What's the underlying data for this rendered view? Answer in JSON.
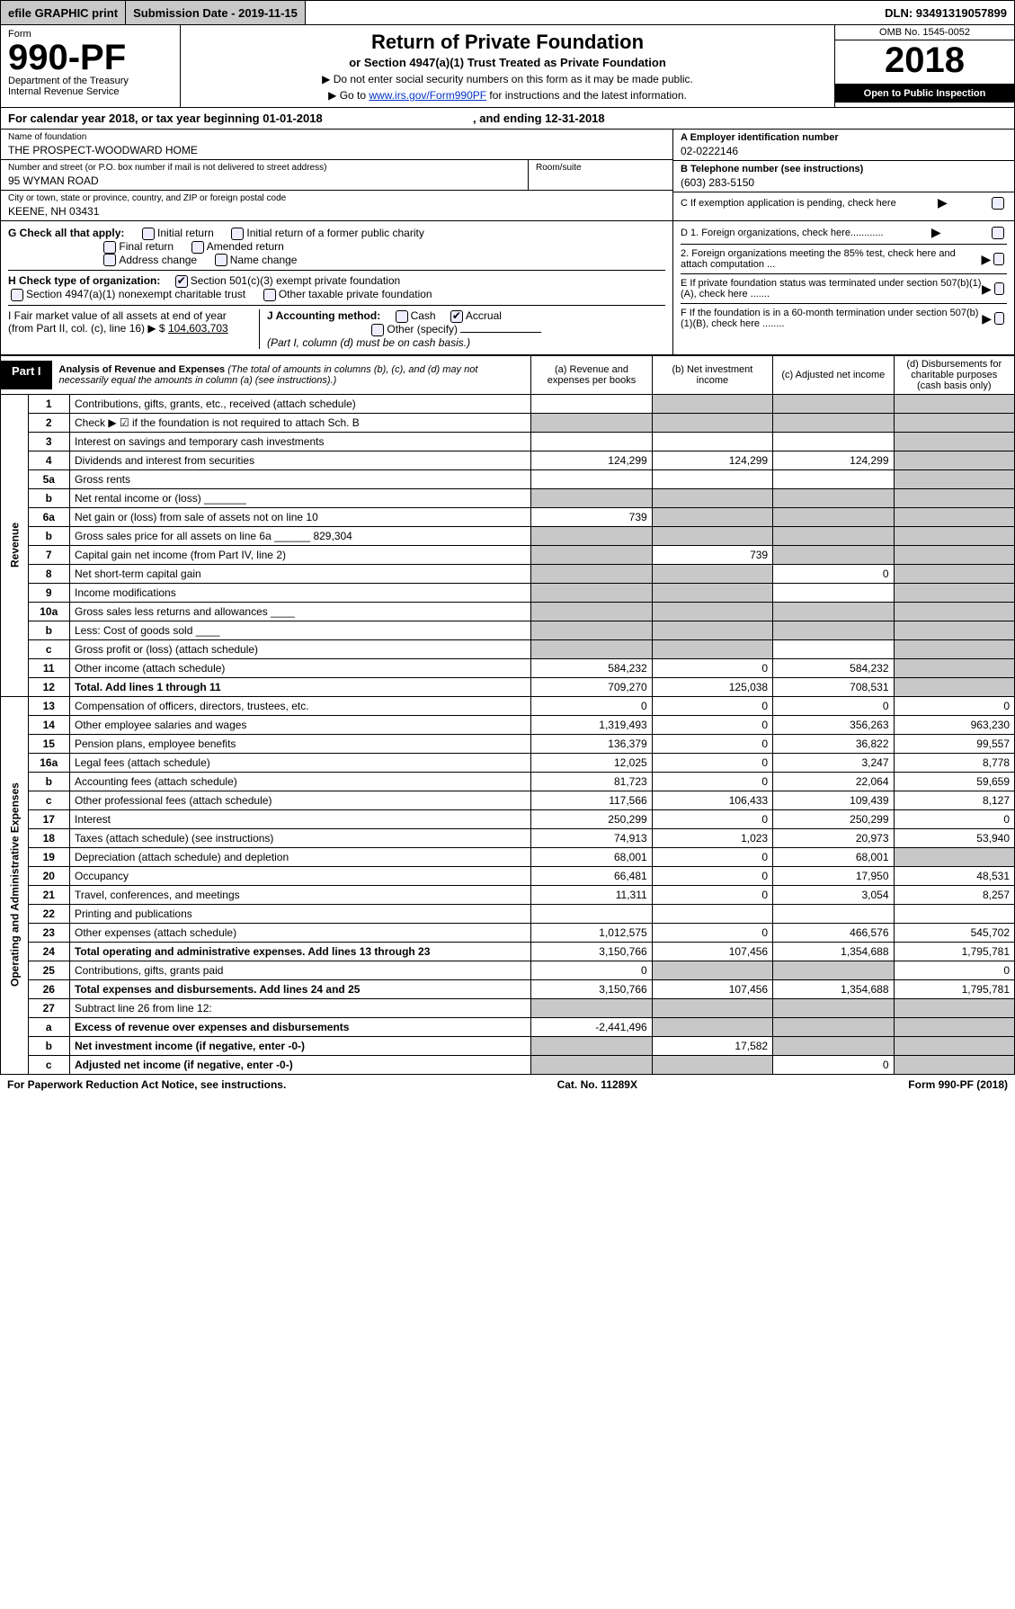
{
  "topbar": {
    "efile": "efile GRAPHIC print",
    "submission": "Submission Date - 2019-11-15",
    "dln": "DLN: 93491319057899"
  },
  "header": {
    "form_word": "Form",
    "form_no": "990-PF",
    "dept": "Department of the Treasury",
    "irs": "Internal Revenue Service",
    "title": "Return of Private Foundation",
    "subtitle": "or Section 4947(a)(1) Trust Treated as Private Foundation",
    "instr1": "▶ Do not enter social security numbers on this form as it may be made public.",
    "instr2_a": "▶ Go to ",
    "instr2_link": "www.irs.gov/Form990PF",
    "instr2_b": " for instructions and the latest information.",
    "omb": "OMB No. 1545-0052",
    "year": "2018",
    "open": "Open to Public Inspection"
  },
  "cal": {
    "text_a": "For calendar year 2018, or tax year beginning 01-01-2018",
    "text_b": ", and ending 12-31-2018"
  },
  "info": {
    "name_label": "Name of foundation",
    "name": "THE PROSPECT-WOODWARD HOME",
    "street_label": "Number and street (or P.O. box number if mail is not delivered to street address)",
    "street": "95 WYMAN ROAD",
    "suite_label": "Room/suite",
    "city_label": "City or town, state or province, country, and ZIP or foreign postal code",
    "city": "KEENE, NH  03431",
    "a_label": "A Employer identification number",
    "a_val": "02-0222146",
    "b_label": "B Telephone number (see instructions)",
    "b_val": "(603) 283-5150",
    "c_label": "C If exemption application is pending, check here",
    "d1": "D 1. Foreign organizations, check here............",
    "d2": "2. Foreign organizations meeting the 85% test, check here and attach computation ...",
    "e": "E  If private foundation status was terminated under section 507(b)(1)(A), check here .......",
    "f": "F  If the foundation is in a 60-month termination under section 507(b)(1)(B), check here ........"
  },
  "checks": {
    "g_label": "G Check all that apply:",
    "g1": "Initial return",
    "g2": "Initial return of a former public charity",
    "g3": "Final return",
    "g4": "Amended return",
    "g5": "Address change",
    "g6": "Name change",
    "h_label": "H Check type of organization:",
    "h1": "Section 501(c)(3) exempt private foundation",
    "h2": "Section 4947(a)(1) nonexempt charitable trust",
    "h3": "Other taxable private foundation",
    "i_label": "I Fair market value of all assets at end of year (from Part II, col. (c), line 16) ▶ $",
    "i_val": "104,603,703",
    "j_label": "J Accounting method:",
    "j1": "Cash",
    "j2": "Accrual",
    "j3": "Other (specify)",
    "j_note": "(Part I, column (d) must be on cash basis.)"
  },
  "part1": {
    "tab": "Part I",
    "title": "Analysis of Revenue and Expenses",
    "note": " (The total of amounts in columns (b), (c), and (d) may not necessarily equal the amounts in column (a) (see instructions).)",
    "col_a": "(a)   Revenue and expenses per books",
    "col_b": "(b)   Net investment income",
    "col_c": "(c)   Adjusted net income",
    "col_d": "(d)   Disbursements for charitable purposes (cash basis only)"
  },
  "side": {
    "revenue": "Revenue",
    "expenses": "Operating and Administrative Expenses"
  },
  "rows": [
    {
      "n": "1",
      "d": "Contributions, gifts, grants, etc., received (attach schedule)",
      "a": "",
      "b": "s",
      "c": "s",
      "ds": "s"
    },
    {
      "n": "2",
      "d": "Check ▶ ☑ if the foundation is not required to attach Sch. B",
      "a": "s",
      "b": "s",
      "c": "s",
      "ds": "s"
    },
    {
      "n": "3",
      "d": "Interest on savings and temporary cash investments",
      "a": "",
      "b": "",
      "c": "",
      "ds": "s"
    },
    {
      "n": "4",
      "d": "Dividends and interest from securities",
      "a": "124,299",
      "b": "124,299",
      "c": "124,299",
      "ds": "s"
    },
    {
      "n": "5a",
      "d": "Gross rents",
      "a": "",
      "b": "",
      "c": "",
      "ds": "s"
    },
    {
      "n": "b",
      "d": "Net rental income or (loss)  _______",
      "a": "s",
      "b": "s",
      "c": "s",
      "ds": "s"
    },
    {
      "n": "6a",
      "d": "Net gain or (loss) from sale of assets not on line 10",
      "a": "739",
      "b": "s",
      "c": "s",
      "ds": "s"
    },
    {
      "n": "b",
      "d": "Gross sales price for all assets on line 6a ______ 829,304",
      "a": "s",
      "b": "s",
      "c": "s",
      "ds": "s"
    },
    {
      "n": "7",
      "d": "Capital gain net income (from Part IV, line 2)",
      "a": "s",
      "b": "739",
      "c": "s",
      "ds": "s"
    },
    {
      "n": "8",
      "d": "Net short-term capital gain",
      "a": "s",
      "b": "s",
      "c": "0",
      "ds": "s"
    },
    {
      "n": "9",
      "d": "Income modifications",
      "a": "s",
      "b": "s",
      "c": "",
      "ds": "s"
    },
    {
      "n": "10a",
      "d": "Gross sales less returns and allowances  ____",
      "a": "s",
      "b": "s",
      "c": "s",
      "ds": "s"
    },
    {
      "n": "b",
      "d": "Less: Cost of goods sold  ____",
      "a": "s",
      "b": "s",
      "c": "s",
      "ds": "s"
    },
    {
      "n": "c",
      "d": "Gross profit or (loss) (attach schedule)",
      "a": "s",
      "b": "s",
      "c": "",
      "ds": "s"
    },
    {
      "n": "11",
      "d": "Other income (attach schedule)",
      "a": "584,232",
      "b": "0",
      "c": "584,232",
      "ds": "s"
    },
    {
      "n": "12",
      "d": "Total. Add lines 1 through 11",
      "a": "709,270",
      "b": "125,038",
      "c": "708,531",
      "ds": "s",
      "bold": true
    }
  ],
  "erows": [
    {
      "n": "13",
      "d": "Compensation of officers, directors, trustees, etc.",
      "a": "0",
      "b": "0",
      "c": "0",
      "dd": "0"
    },
    {
      "n": "14",
      "d": "Other employee salaries and wages",
      "a": "1,319,493",
      "b": "0",
      "c": "356,263",
      "dd": "963,230"
    },
    {
      "n": "15",
      "d": "Pension plans, employee benefits",
      "a": "136,379",
      "b": "0",
      "c": "36,822",
      "dd": "99,557"
    },
    {
      "n": "16a",
      "d": "Legal fees (attach schedule)",
      "a": "12,025",
      "b": "0",
      "c": "3,247",
      "dd": "8,778"
    },
    {
      "n": "b",
      "d": "Accounting fees (attach schedule)",
      "a": "81,723",
      "b": "0",
      "c": "22,064",
      "dd": "59,659"
    },
    {
      "n": "c",
      "d": "Other professional fees (attach schedule)",
      "a": "117,566",
      "b": "106,433",
      "c": "109,439",
      "dd": "8,127"
    },
    {
      "n": "17",
      "d": "Interest",
      "a": "250,299",
      "b": "0",
      "c": "250,299",
      "dd": "0"
    },
    {
      "n": "18",
      "d": "Taxes (attach schedule) (see instructions)",
      "a": "74,913",
      "b": "1,023",
      "c": "20,973",
      "dd": "53,940"
    },
    {
      "n": "19",
      "d": "Depreciation (attach schedule) and depletion",
      "a": "68,001",
      "b": "0",
      "c": "68,001",
      "dd": "s"
    },
    {
      "n": "20",
      "d": "Occupancy",
      "a": "66,481",
      "b": "0",
      "c": "17,950",
      "dd": "48,531"
    },
    {
      "n": "21",
      "d": "Travel, conferences, and meetings",
      "a": "11,311",
      "b": "0",
      "c": "3,054",
      "dd": "8,257"
    },
    {
      "n": "22",
      "d": "Printing and publications",
      "a": "",
      "b": "",
      "c": "",
      "dd": ""
    },
    {
      "n": "23",
      "d": "Other expenses (attach schedule)",
      "a": "1,012,575",
      "b": "0",
      "c": "466,576",
      "dd": "545,702"
    },
    {
      "n": "24",
      "d": "Total operating and administrative expenses. Add lines 13 through 23",
      "a": "3,150,766",
      "b": "107,456",
      "c": "1,354,688",
      "dd": "1,795,781",
      "bold": true
    },
    {
      "n": "25",
      "d": "Contributions, gifts, grants paid",
      "a": "0",
      "b": "s",
      "c": "s",
      "dd": "0"
    },
    {
      "n": "26",
      "d": "Total expenses and disbursements. Add lines 24 and 25",
      "a": "3,150,766",
      "b": "107,456",
      "c": "1,354,688",
      "dd": "1,795,781",
      "bold": true
    },
    {
      "n": "27",
      "d": "Subtract line 26 from line 12:",
      "a": "s",
      "b": "s",
      "c": "s",
      "dd": "s"
    },
    {
      "n": "a",
      "d": "Excess of revenue over expenses and disbursements",
      "a": "-2,441,496",
      "b": "s",
      "c": "s",
      "dd": "s",
      "bold": true
    },
    {
      "n": "b",
      "d": "Net investment income (if negative, enter -0-)",
      "a": "s",
      "b": "17,582",
      "c": "s",
      "dd": "s",
      "bold": true
    },
    {
      "n": "c",
      "d": "Adjusted net income (if negative, enter -0-)",
      "a": "s",
      "b": "s",
      "c": "0",
      "dd": "s",
      "bold": true
    }
  ],
  "footer": {
    "left": "For Paperwork Reduction Act Notice, see instructions.",
    "mid": "Cat. No. 11289X",
    "right": "Form 990-PF (2018)"
  }
}
